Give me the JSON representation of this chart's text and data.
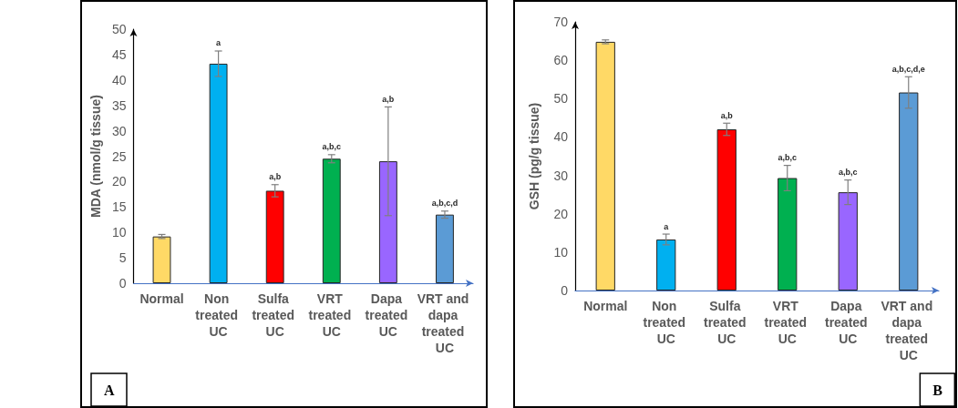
{
  "chart_data": [
    {
      "type": "bar",
      "title": "A",
      "ylabel": "MDA (nmol/g tissue)",
      "categories": [
        "Normal",
        "Non treated UC",
        "Sulfa treated UC",
        "VRT treated UC",
        "Dapa treated UC",
        "VRT and dapa treated UC"
      ],
      "values": [
        9.2,
        43.2,
        18.2,
        24.5,
        24,
        13.5
      ],
      "colors": [
        "#ffd966",
        "#00b0f0",
        "#ff0000",
        "#00b050",
        "#9966ff",
        "#5b9bd5"
      ],
      "errors": [
        0.4,
        2.5,
        1.2,
        0.8,
        10.7,
        0.7
      ],
      "ylim": [
        0,
        50
      ],
      "yticks": [
        0,
        5,
        10,
        15,
        20,
        25,
        30,
        35,
        40,
        45,
        50
      ],
      "grid": false,
      "annotations": [
        {
          "text": "a",
          "x": "Non treated UC",
          "y": 45.7
        },
        {
          "text": "a,b",
          "x": "Sulfa treated UC",
          "y": 19.4
        },
        {
          "text": "a,b,c",
          "x": "VRT treated UC",
          "y": 25.3
        },
        {
          "text": "a,b",
          "x": "Dapa treated UC",
          "y": 34.7
        },
        {
          "text": "a,b,c,d",
          "x": "VRT and dapa treated UC",
          "y": 14.2
        }
      ]
    },
    {
      "type": "bar",
      "title": "B",
      "ylabel": "GSH (pg/g tissue)",
      "categories": [
        "Normal",
        "Non treated UC",
        "Sulfa treated UC",
        "VRT treated UC",
        "Dapa treated UC",
        "VRT and dapa treated UC"
      ],
      "values": [
        64.8,
        13.3,
        42,
        29.3,
        25.6,
        51.6
      ],
      "colors": [
        "#ffd966",
        "#00b0f0",
        "#ff0000",
        "#00b050",
        "#9966ff",
        "#5b9bd5"
      ],
      "errors": [
        0.5,
        1.4,
        1.6,
        3.3,
        3.2,
        4.1
      ],
      "ylim": [
        0,
        70
      ],
      "yticks": [
        0,
        10,
        20,
        30,
        40,
        50,
        60,
        70
      ],
      "grid": false,
      "annotations": [
        {
          "text": "a",
          "x": "Non treated UC",
          "y": 14.7
        },
        {
          "text": "a,b",
          "x": "Sulfa treated UC",
          "y": 43.6
        },
        {
          "text": "a,b,c",
          "x": "VRT treated UC",
          "y": 32.6
        },
        {
          "text": "a,b,c",
          "x": "Dapa treated UC",
          "y": 28.8
        },
        {
          "text": "a,b,c,d,e",
          "x": "VRT and dapa treated UC",
          "y": 55.7
        }
      ]
    }
  ]
}
